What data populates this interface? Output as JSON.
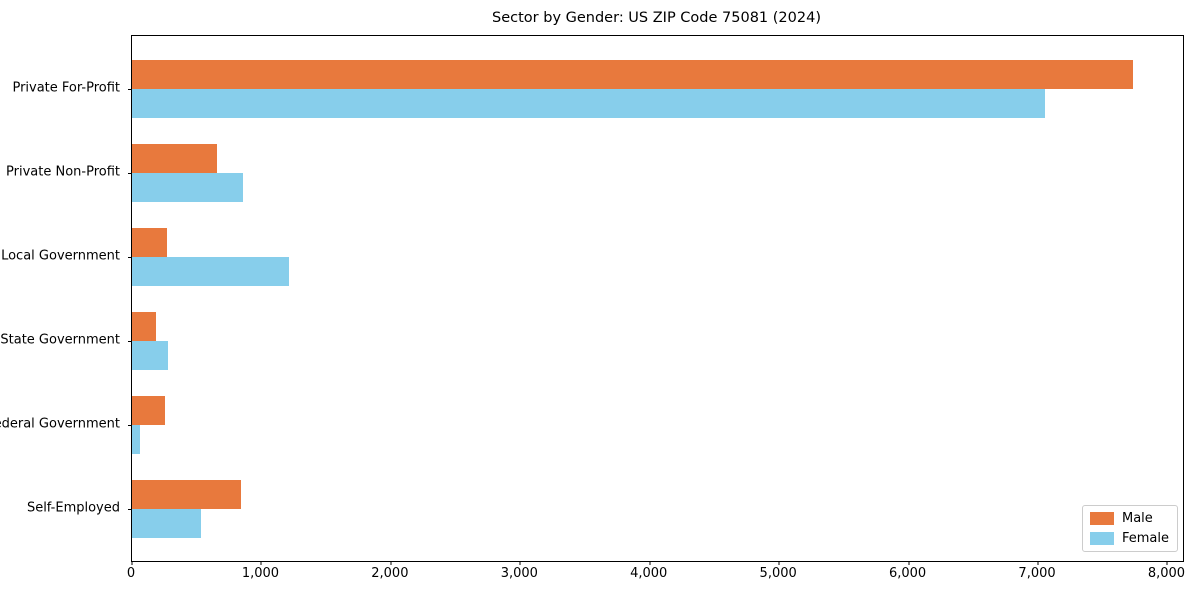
{
  "chart_data": {
    "type": "bar",
    "orientation": "horizontal",
    "title": "Sector by Gender: US ZIP Code 75081 (2024)",
    "categories": [
      "Private For-Profit",
      "Private Non-Profit",
      "Local Government",
      "State Government",
      "Federal Government",
      "Self-Employed"
    ],
    "series": [
      {
        "name": "Male",
        "color": "#E8793D",
        "values": [
          7730,
          655,
          270,
          185,
          255,
          840
        ]
      },
      {
        "name": "Female",
        "color": "#87CEEB",
        "values": [
          7050,
          860,
          1215,
          280,
          65,
          530
        ]
      }
    ],
    "xlabel": "",
    "ylabel": "",
    "xlim": [
      0,
      8120
    ],
    "x_ticks": [
      0,
      1000,
      2000,
      3000,
      4000,
      5000,
      6000,
      7000,
      8000
    ],
    "x_tick_labels": [
      "0",
      "1,000",
      "2,000",
      "3,000",
      "4,000",
      "5,000",
      "6,000",
      "7,000",
      "8,000"
    ],
    "grid": false,
    "legend": {
      "position": "lower right",
      "labels": [
        "Male",
        "Female"
      ]
    }
  }
}
